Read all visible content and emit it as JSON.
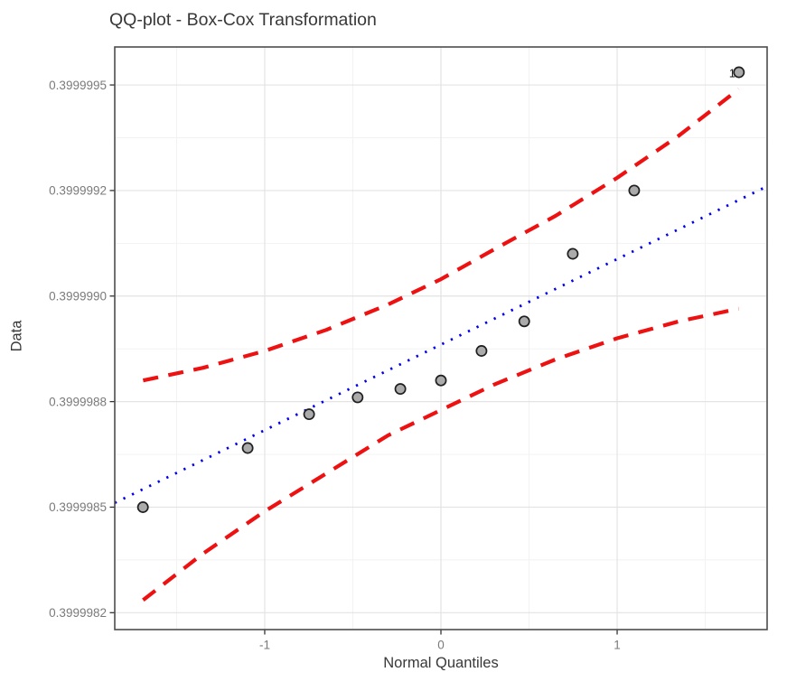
{
  "chart_data": {
    "type": "scatter",
    "title": "QQ-plot - Box-Cox Transformation",
    "xlabel": "Normal Quantiles",
    "ylabel": "Data",
    "xlim": [
      -1.851,
      1.851
    ],
    "ylim": [
      0.39999821,
      0.39999959
    ],
    "grid": true,
    "legend": false,
    "x_ticks": {
      "major_values": [
        -1,
        0,
        1
      ],
      "major_labels": [
        "-1",
        "0",
        "1"
      ],
      "minor_values": [
        -1.5,
        -0.5,
        0.5,
        1.5
      ]
    },
    "y_ticks": {
      "major_values": [
        0.3999995,
        0.39999925,
        0.399999,
        0.39999875,
        0.3999985,
        0.39999825
      ],
      "major_labels": [
        "0.3999995",
        "0.3999992",
        "0.3999990",
        "0.3999988",
        "0.3999985",
        "0.3999982"
      ],
      "minor_values": [
        0.399999375,
        0.399999125,
        0.399998875,
        0.399998625,
        0.399998375
      ]
    },
    "points": {
      "quantiles": [
        -1.691,
        -1.097,
        -0.748,
        -0.473,
        -0.23,
        0.0,
        0.23,
        0.473,
        0.748,
        1.097,
        1.691
      ],
      "values": [
        0.3999985,
        0.39999864,
        0.39999872,
        0.39999876,
        0.39999878,
        0.3999988,
        0.39999887,
        0.39999894,
        0.3999991,
        0.39999925,
        0.39999953
      ]
    },
    "outlier_label": {
      "text": "10",
      "point_index": 10
    },
    "reference_line": {
      "style": "dotted",
      "q": [
        -1.851,
        1.851
      ],
      "v": [
        0.39999851,
        0.39999926
      ]
    },
    "envelope_upper": {
      "style": "dashed",
      "q": [
        -1.69,
        -1.35,
        -1.0,
        -0.65,
        -0.3,
        0.0,
        0.3,
        0.65,
        1.0,
        1.35,
        1.69
      ],
      "v": [
        0.3999988,
        0.39999883,
        0.39999887,
        0.39999892,
        0.39999898,
        0.39999904,
        0.39999911,
        0.39999919,
        0.39999928,
        0.39999938,
        0.39999949
      ]
    },
    "envelope_lower": {
      "style": "dashed",
      "q": [
        -1.69,
        -1.35,
        -1.0,
        -0.65,
        -0.3,
        0.0,
        0.3,
        0.65,
        1.0,
        1.35,
        1.69
      ],
      "v": [
        0.39999828,
        0.39999839,
        0.39999849,
        0.39999858,
        0.39999867,
        0.39999873,
        0.39999879,
        0.39999885,
        0.3999989,
        0.39999894,
        0.39999897
      ]
    }
  },
  "colors": {
    "reference_line": "#0000ee",
    "envelope": "#ee1111",
    "point_fill": "#ababab",
    "point_stroke": "#1f1f1f",
    "grid_major": "#e3e3e3",
    "grid_minor": "#f1f1f1",
    "panel_border": "#4d4d4d",
    "tick_mark": "#333333",
    "tick_label": "#7a7a7a",
    "outlier_label": "#1a1a1a"
  }
}
